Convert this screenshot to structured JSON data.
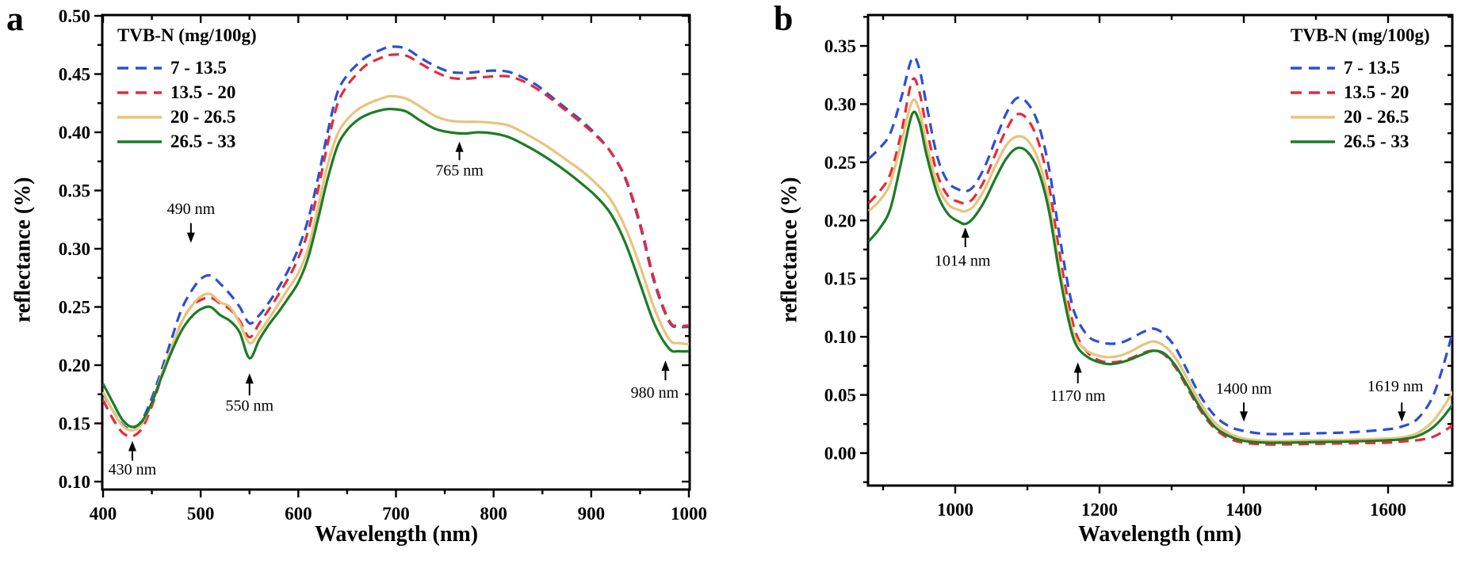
{
  "chart_data": [
    {
      "type": "line",
      "panel_label": "a",
      "title": "",
      "xlabel": "Wavelength (nm)",
      "ylabel": "reflectance (%)",
      "legend_title": "TVB-N (mg/100g)",
      "legend_position": "top-left",
      "grid": false,
      "xlim": [
        400,
        1000
      ],
      "ylim": [
        0.1,
        0.5
      ],
      "x_major_ticks": [
        400,
        500,
        600,
        700,
        800,
        900,
        1000
      ],
      "x_tick_labels": [
        "400",
        "500",
        "600",
        "700",
        "800",
        "900",
        "1000"
      ],
      "x_minor_ticks": [
        450,
        550,
        650,
        750,
        850,
        950
      ],
      "y_major_ticks": [
        0.1,
        0.15,
        0.2,
        0.25,
        0.3,
        0.35,
        0.4,
        0.45,
        0.5
      ],
      "y_tick_labels": [
        "0.10",
        "0.15",
        "0.20",
        "0.25",
        "0.30",
        "0.35",
        "0.40",
        "0.45",
        "0.50"
      ],
      "y_minor_ticks": [
        0.125,
        0.175,
        0.225,
        0.275,
        0.325,
        0.375,
        0.425,
        0.475
      ],
      "x_shared": [
        400,
        410,
        420,
        430,
        440,
        450,
        460,
        470,
        480,
        490,
        500,
        510,
        520,
        530,
        540,
        550,
        560,
        570,
        580,
        590,
        600,
        610,
        620,
        630,
        640,
        650,
        660,
        670,
        685,
        695,
        710,
        725,
        740,
        755,
        770,
        785,
        800,
        815,
        830,
        845,
        860,
        875,
        890,
        905,
        920,
        935,
        950,
        965,
        980,
        990,
        1000
      ],
      "series": [
        {
          "name": "7 - 13.5",
          "color": "#2b4fd4",
          "dash": true,
          "y": [
            0.176,
            0.161,
            0.149,
            0.145,
            0.153,
            0.172,
            0.196,
            0.222,
            0.247,
            0.263,
            0.274,
            0.277,
            0.27,
            0.261,
            0.25,
            0.236,
            0.243,
            0.254,
            0.267,
            0.282,
            0.3,
            0.325,
            0.36,
            0.4,
            0.434,
            0.449,
            0.458,
            0.465,
            0.471,
            0.4735,
            0.472,
            0.464,
            0.457,
            0.452,
            0.451,
            0.452,
            0.453,
            0.452,
            0.447,
            0.44,
            0.43,
            0.42,
            0.41,
            0.398,
            0.383,
            0.36,
            0.32,
            0.27,
            0.237,
            0.233,
            0.233
          ]
        },
        {
          "name": "13.5 - 20",
          "color": "#e62b38",
          "dash": true,
          "y": [
            0.17,
            0.154,
            0.142,
            0.139,
            0.146,
            0.165,
            0.19,
            0.214,
            0.236,
            0.25,
            0.256,
            0.258,
            0.253,
            0.248,
            0.238,
            0.224,
            0.236,
            0.248,
            0.261,
            0.275,
            0.292,
            0.315,
            0.35,
            0.39,
            0.424,
            0.44,
            0.45,
            0.458,
            0.464,
            0.4665,
            0.466,
            0.459,
            0.452,
            0.447,
            0.446,
            0.447,
            0.448,
            0.448,
            0.444,
            0.437,
            0.428,
            0.418,
            0.408,
            0.397,
            0.383,
            0.361,
            0.322,
            0.272,
            0.238,
            0.234,
            0.234
          ]
        },
        {
          "name": "20 - 26.5",
          "color": "#e7c47c",
          "dash": false,
          "y": [
            0.177,
            0.161,
            0.148,
            0.144,
            0.15,
            0.168,
            0.192,
            0.215,
            0.236,
            0.25,
            0.259,
            0.261,
            0.254,
            0.25,
            0.236,
            0.219,
            0.228,
            0.24,
            0.253,
            0.266,
            0.279,
            0.3,
            0.335,
            0.372,
            0.398,
            0.411,
            0.419,
            0.424,
            0.429,
            0.431,
            0.429,
            0.422,
            0.414,
            0.41,
            0.409,
            0.409,
            0.408,
            0.406,
            0.4,
            0.393,
            0.385,
            0.376,
            0.367,
            0.356,
            0.342,
            0.318,
            0.285,
            0.248,
            0.222,
            0.219,
            0.218
          ]
        },
        {
          "name": "26.5 - 33",
          "color": "#1c7c26",
          "dash": false,
          "y": [
            0.184,
            0.168,
            0.153,
            0.147,
            0.152,
            0.168,
            0.19,
            0.211,
            0.229,
            0.241,
            0.248,
            0.25,
            0.243,
            0.238,
            0.228,
            0.206,
            0.222,
            0.235,
            0.246,
            0.258,
            0.271,
            0.292,
            0.325,
            0.36,
            0.388,
            0.402,
            0.41,
            0.415,
            0.419,
            0.42,
            0.418,
            0.41,
            0.403,
            0.4,
            0.399,
            0.4,
            0.399,
            0.396,
            0.39,
            0.383,
            0.375,
            0.366,
            0.356,
            0.345,
            0.33,
            0.305,
            0.27,
            0.235,
            0.214,
            0.212,
            0.212
          ]
        }
      ],
      "annotations": [
        {
          "label": "430 nm",
          "x": 430,
          "dir": "up",
          "tip": 0.135,
          "tail": 0.118,
          "text_y": 0.106
        },
        {
          "label": "490 nm",
          "x": 490,
          "dir": "down",
          "tip": 0.305,
          "tail": 0.322,
          "text_y": 0.33
        },
        {
          "label": "550 nm",
          "x": 550,
          "dir": "up",
          "tip": 0.193,
          "tail": 0.174,
          "text_y": 0.161
        },
        {
          "label": "765 nm",
          "x": 765,
          "dir": "up",
          "tip": 0.392,
          "tail": 0.376,
          "text_y": 0.363
        },
        {
          "label": "980 nm",
          "x": 976,
          "text_x": 965,
          "dir": "up",
          "tip": 0.204,
          "tail": 0.187,
          "text_y": 0.172
        }
      ]
    },
    {
      "type": "line",
      "panel_label": "b",
      "title": "",
      "xlabel": "Wavelength (nm)",
      "ylabel": "reflectance (%)",
      "legend_title": "TVB-N (mg/100g)",
      "legend_position": "top-right",
      "grid": false,
      "xlim": [
        879,
        1689
      ],
      "ylim": [
        0.0,
        0.35
      ],
      "x_major_ticks": [
        1000,
        1200,
        1400,
        1600
      ],
      "x_tick_labels": [
        "1000",
        "1200",
        "1400",
        "1600"
      ],
      "x_minor_ticks": [
        900,
        1100,
        1300,
        1500
      ],
      "y_major_ticks": [
        0.0,
        0.05,
        0.1,
        0.15,
        0.2,
        0.25,
        0.3,
        0.35
      ],
      "y_tick_labels": [
        "0.00",
        "0.05",
        "0.10",
        "0.15",
        "0.20",
        "0.25",
        "0.30",
        "0.35"
      ],
      "y_minor_ticks": [
        -0.025,
        0.025,
        0.075,
        0.125,
        0.175,
        0.225,
        0.275,
        0.325,
        0.375
      ],
      "x_shared": [
        880,
        895,
        910,
        925,
        940,
        950,
        960,
        975,
        990,
        1005,
        1014,
        1025,
        1040,
        1055,
        1070,
        1085,
        1100,
        1115,
        1130,
        1145,
        1160,
        1170,
        1185,
        1200,
        1215,
        1230,
        1245,
        1260,
        1275,
        1290,
        1305,
        1320,
        1340,
        1360,
        1380,
        1400,
        1430,
        1460,
        1500,
        1550,
        1600,
        1620,
        1640,
        1660,
        1675,
        1690
      ],
      "series": [
        {
          "name": "7 - 13.5",
          "color": "#2b4fd4",
          "dash": true,
          "y": [
            0.253,
            0.262,
            0.275,
            0.305,
            0.339,
            0.331,
            0.3,
            0.255,
            0.233,
            0.2265,
            0.225,
            0.229,
            0.245,
            0.268,
            0.291,
            0.305,
            0.301,
            0.283,
            0.245,
            0.185,
            0.133,
            0.114,
            0.1,
            0.0955,
            0.094,
            0.095,
            0.099,
            0.104,
            0.107,
            0.102,
            0.091,
            0.073,
            0.049,
            0.032,
            0.023,
            0.019,
            0.0165,
            0.0165,
            0.017,
            0.018,
            0.0205,
            0.023,
            0.029,
            0.046,
            0.072,
            0.105
          ]
        },
        {
          "name": "13.5 - 20",
          "color": "#e62b38",
          "dash": true,
          "y": [
            0.215,
            0.225,
            0.24,
            0.275,
            0.32,
            0.311,
            0.28,
            0.24,
            0.221,
            0.216,
            0.215,
            0.219,
            0.234,
            0.256,
            0.277,
            0.291,
            0.287,
            0.268,
            0.23,
            0.17,
            0.12,
            0.099,
            0.0855,
            0.0795,
            0.078,
            0.079,
            0.082,
            0.086,
            0.088,
            0.0845,
            0.074,
            0.058,
            0.0365,
            0.021,
            0.0125,
            0.009,
            0.0075,
            0.0075,
            0.008,
            0.0085,
            0.009,
            0.01,
            0.011,
            0.0135,
            0.018,
            0.024
          ]
        },
        {
          "name": "20 - 26.5",
          "color": "#e7c47c",
          "dash": false,
          "y": [
            0.208,
            0.217,
            0.232,
            0.266,
            0.302,
            0.295,
            0.266,
            0.231,
            0.214,
            0.209,
            0.208,
            0.212,
            0.226,
            0.246,
            0.264,
            0.272,
            0.269,
            0.252,
            0.216,
            0.158,
            0.112,
            0.0955,
            0.087,
            0.0835,
            0.0825,
            0.084,
            0.088,
            0.093,
            0.096,
            0.092,
            0.082,
            0.066,
            0.043,
            0.026,
            0.017,
            0.0125,
            0.0105,
            0.0105,
            0.011,
            0.0115,
            0.0125,
            0.0135,
            0.017,
            0.026,
            0.038,
            0.053
          ]
        },
        {
          "name": "26.5 - 33",
          "color": "#1c7c26",
          "dash": false,
          "y": [
            0.182,
            0.193,
            0.21,
            0.25,
            0.291,
            0.285,
            0.257,
            0.223,
            0.2055,
            0.199,
            0.197,
            0.202,
            0.216,
            0.235,
            0.2525,
            0.262,
            0.259,
            0.243,
            0.208,
            0.152,
            0.107,
            0.0905,
            0.082,
            0.078,
            0.0765,
            0.078,
            0.081,
            0.085,
            0.088,
            0.0855,
            0.0755,
            0.06,
            0.0385,
            0.0225,
            0.0145,
            0.0105,
            0.009,
            0.009,
            0.0095,
            0.01,
            0.011,
            0.012,
            0.0145,
            0.021,
            0.03,
            0.042
          ]
        }
      ],
      "annotations": [
        {
          "label": "1014 nm",
          "x": 1014,
          "text_x": 1010,
          "dir": "up",
          "tip": 0.194,
          "tail": 0.177,
          "text_y": 0.161
        },
        {
          "label": "1170 nm",
          "x": 1170,
          "dir": "up",
          "tip": 0.078,
          "tail": 0.06,
          "text_y": 0.045
        },
        {
          "label": "1400 nm",
          "x": 1400,
          "dir": "down",
          "tip": 0.027,
          "tail": 0.0435,
          "text_y": 0.051
        },
        {
          "label": "1619 nm",
          "x": 1619,
          "text_x": 1610,
          "dir": "down",
          "tip": 0.027,
          "tail": 0.0435,
          "text_y": 0.053
        }
      ]
    }
  ]
}
